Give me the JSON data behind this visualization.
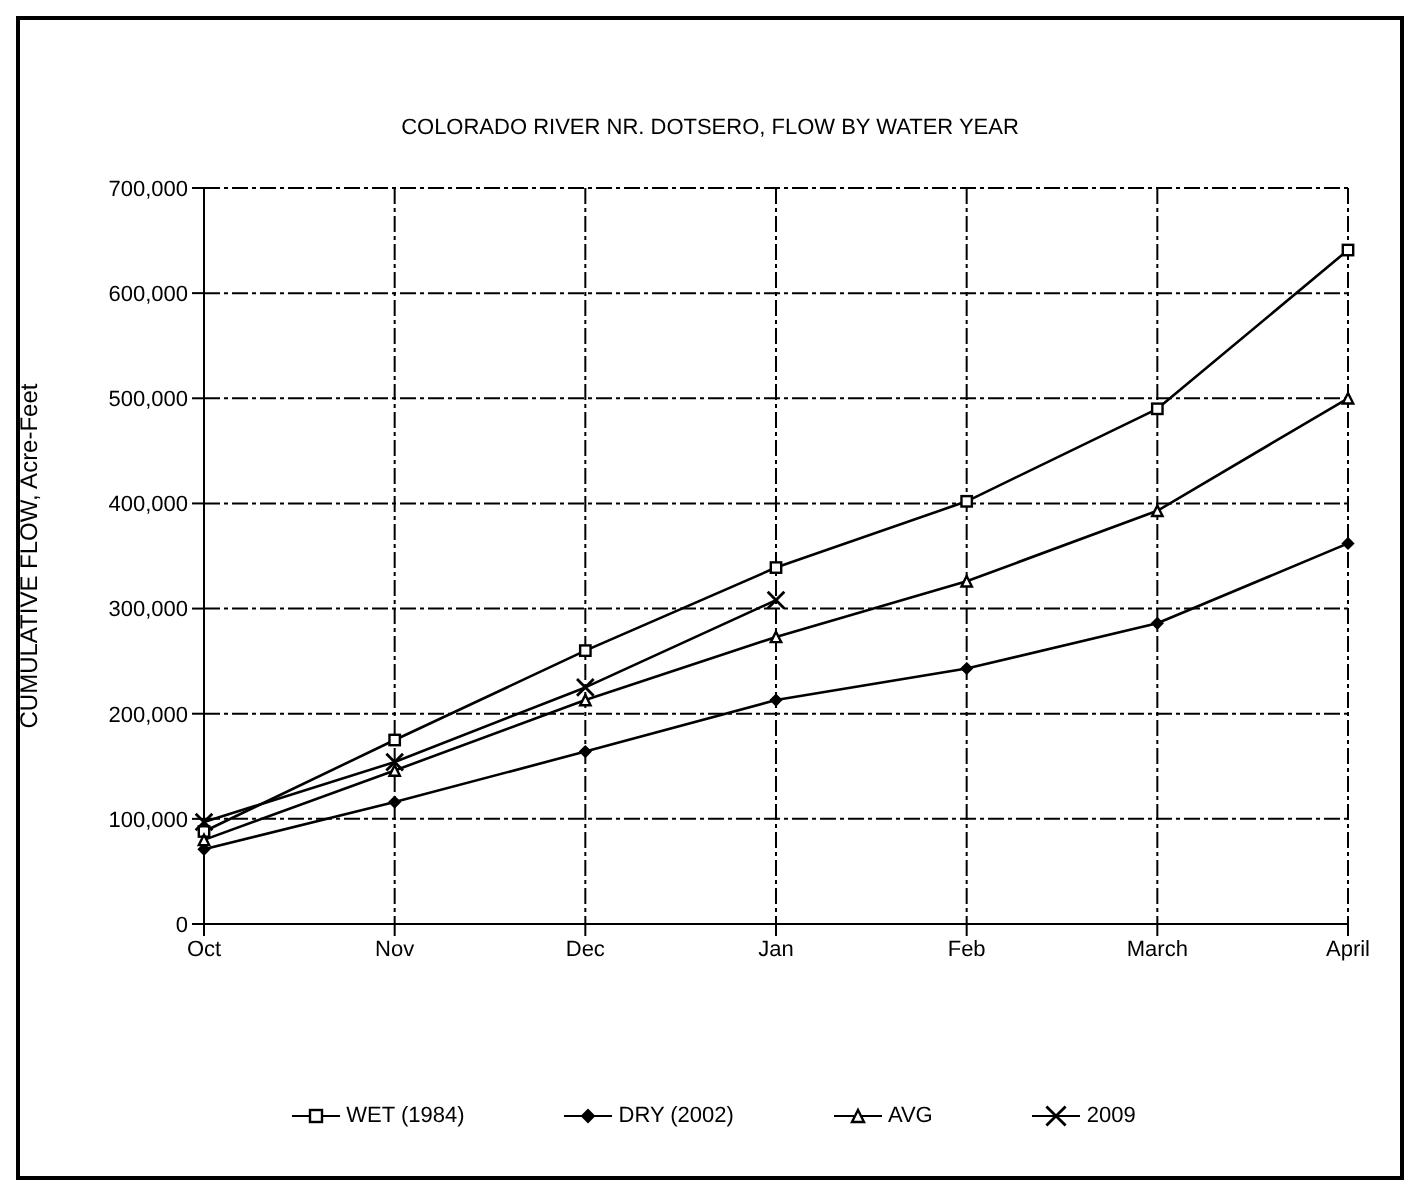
{
  "chart_data": {
    "type": "line",
    "title": "COLORADO RIVER NR. DOTSERO, FLOW BY WATER YEAR",
    "ylabel": "CUMULATIVE FLOW, Acre-Feet",
    "categories": [
      "Oct",
      "Nov",
      "Dec",
      "Jan",
      "Feb",
      "March",
      "April"
    ],
    "series": [
      {
        "name": "WET (1984)",
        "color": "#000000",
        "marker": "square",
        "values": [
          88000,
          175000,
          260000,
          339000,
          402000,
          490000,
          641000
        ]
      },
      {
        "name": "DRY (2002)",
        "color": "#000000",
        "marker": "diamond",
        "values": [
          71000,
          116000,
          164000,
          213000,
          243000,
          286000,
          362000
        ]
      },
      {
        "name": "AVG",
        "color": "#000000",
        "marker": "triangle",
        "values": [
          80000,
          146000,
          213000,
          273000,
          326000,
          393000,
          500000
        ]
      },
      {
        "name": "2009",
        "color": "#000000",
        "marker": "cross",
        "values": [
          97000,
          154000,
          225000,
          308000,
          null,
          null,
          null
        ]
      }
    ],
    "ylim": [
      0,
      700000
    ],
    "yticks": [
      0,
      {
        "value": 100000,
        "label": "100,000"
      },
      {
        "value": 200000,
        "label": "200,000"
      },
      {
        "value": 300000,
        "label": "300,000"
      },
      {
        "value": 400000,
        "label": "400,000"
      },
      {
        "value": 500000,
        "label": "500,000"
      },
      {
        "value": 600000,
        "label": "600,000"
      },
      {
        "value": 700000,
        "label": "700,000"
      }
    ],
    "grid": true,
    "legend": "bottom"
  }
}
